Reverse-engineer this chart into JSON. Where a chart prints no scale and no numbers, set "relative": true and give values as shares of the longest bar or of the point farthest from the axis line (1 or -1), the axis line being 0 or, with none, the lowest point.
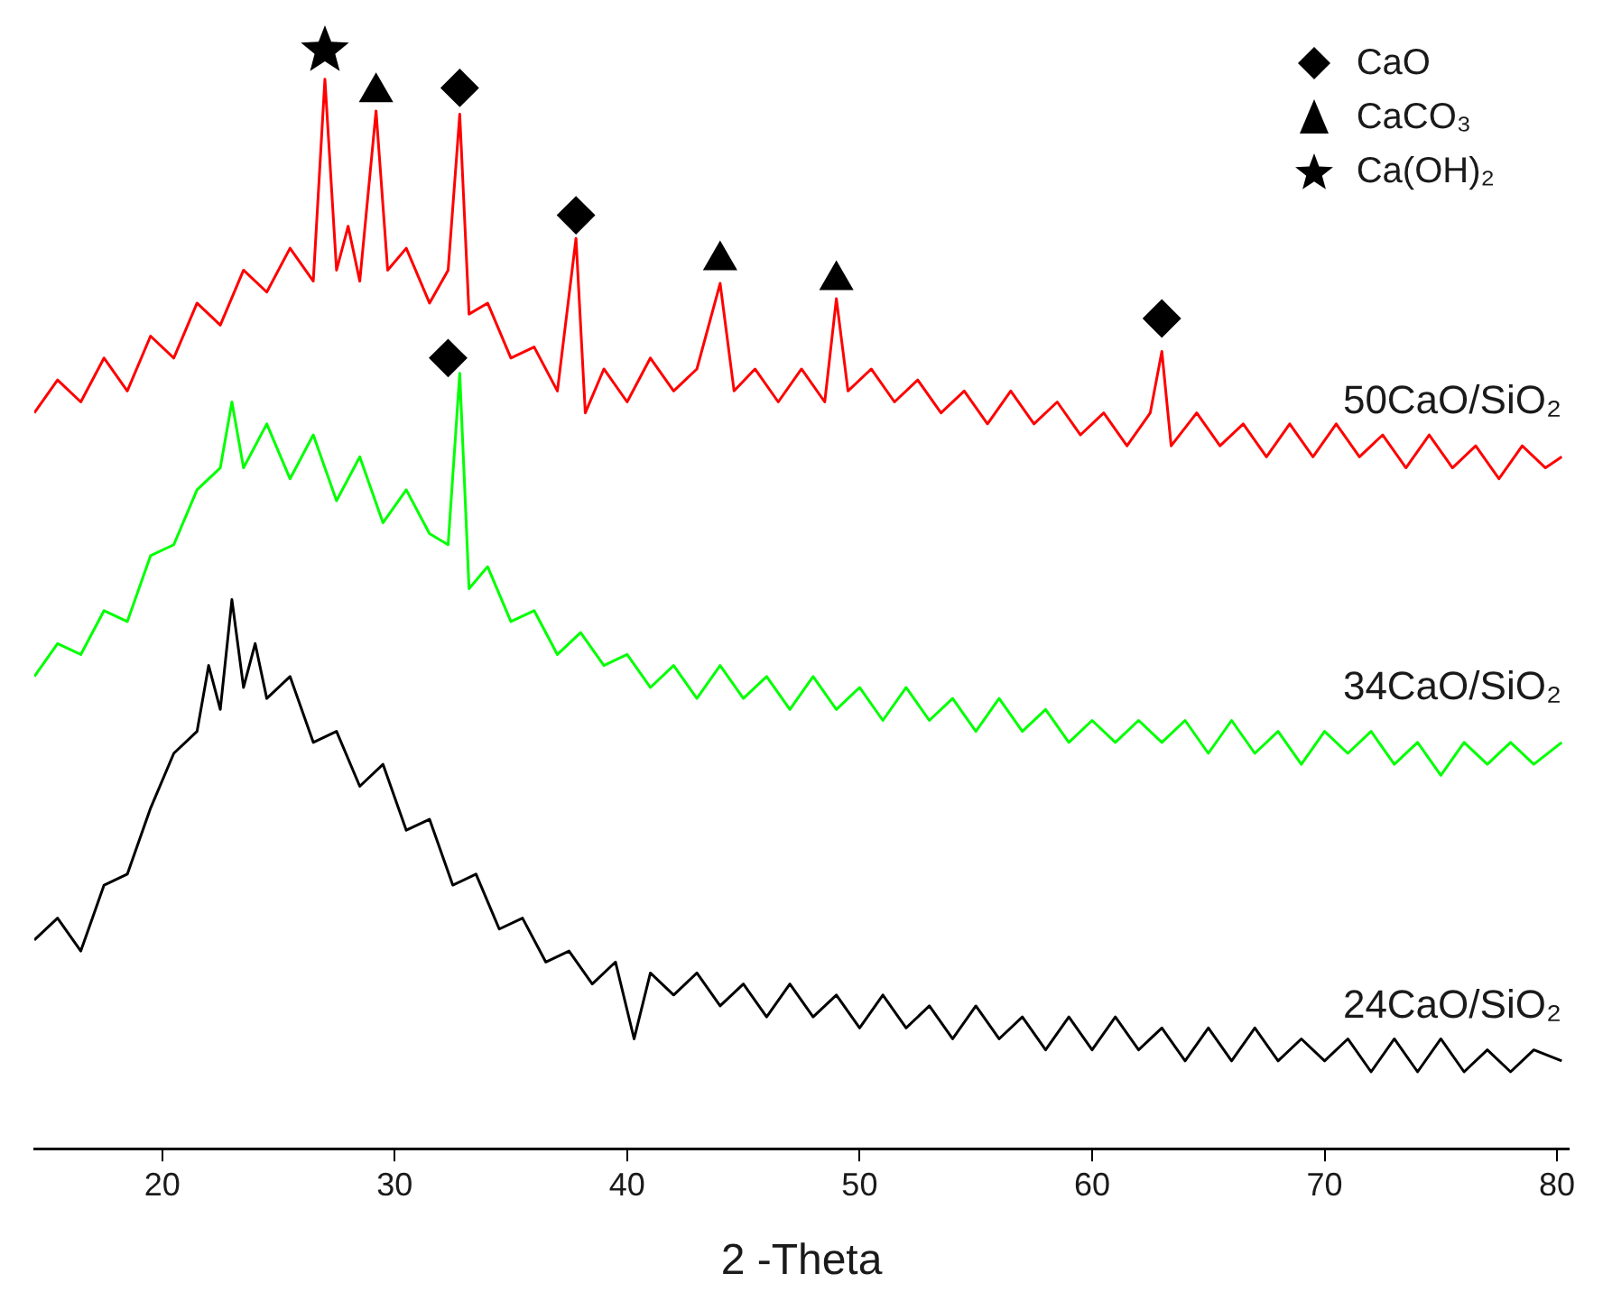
{
  "chart_data": {
    "type": "line",
    "relative": true,
    "xlabel": "2 -Theta",
    "xlim": [
      14.5,
      80.5
    ],
    "xticks": [
      20,
      30,
      40,
      50,
      60,
      70,
      80
    ],
    "grid": false,
    "legend": "top right",
    "marker": "none",
    "line_style": "solid",
    "series": [
      {
        "name": "50CaO/SiO₂",
        "color": "#ff0000",
        "x": [
          14.5,
          15.5,
          16.5,
          17.5,
          18.5,
          19.5,
          20.5,
          21.5,
          22.5,
          23.5,
          24.5,
          25.5,
          26.5,
          27,
          27.5,
          28,
          28.5,
          29.2,
          29.7,
          30.5,
          31.5,
          32.3,
          32.8,
          33.2,
          34,
          35,
          36,
          37,
          37.8,
          38.2,
          39,
          40,
          41,
          42,
          43,
          44,
          44.6,
          45.5,
          46.5,
          47.5,
          48.5,
          49,
          49.5,
          50.5,
          51.5,
          52.5,
          53.5,
          54.5,
          55.5,
          56.5,
          57.5,
          58.5,
          59.5,
          60.5,
          61.5,
          62.5,
          63,
          63.4,
          64.5,
          65.5,
          66.5,
          67.5,
          68.5,
          69.5,
          70.5,
          71.5,
          72.5,
          73.5,
          74.5,
          75.5,
          76.5,
          77.5,
          78.5,
          79.5,
          80.2
        ],
        "values": [
          0.67,
          0.7,
          0.68,
          0.72,
          0.69,
          0.74,
          0.72,
          0.77,
          0.75,
          0.8,
          0.78,
          0.82,
          0.79,
          0.974,
          0.8,
          0.84,
          0.79,
          0.945,
          0.8,
          0.82,
          0.77,
          0.8,
          0.942,
          0.76,
          0.77,
          0.72,
          0.73,
          0.69,
          0.829,
          0.67,
          0.71,
          0.68,
          0.72,
          0.69,
          0.71,
          0.788,
          0.69,
          0.71,
          0.68,
          0.71,
          0.68,
          0.774,
          0.69,
          0.71,
          0.68,
          0.7,
          0.67,
          0.69,
          0.66,
          0.69,
          0.66,
          0.68,
          0.65,
          0.67,
          0.64,
          0.67,
          0.726,
          0.64,
          0.67,
          0.64,
          0.66,
          0.63,
          0.66,
          0.63,
          0.66,
          0.63,
          0.65,
          0.62,
          0.65,
          0.62,
          0.64,
          0.61,
          0.64,
          0.62,
          0.63
        ]
      },
      {
        "name": "34CaO/SiO₂",
        "color": "#00ff00",
        "x": [
          14.5,
          15.5,
          16.5,
          17.5,
          18.5,
          19.5,
          20.5,
          21.5,
          22.5,
          23,
          23.5,
          24.5,
          25.5,
          26.5,
          27.5,
          28.5,
          29.5,
          30.5,
          31.5,
          32.3,
          32.8,
          33.2,
          34,
          35,
          36,
          37,
          38,
          39,
          40,
          41,
          42,
          43,
          44,
          45,
          46,
          47,
          48,
          49,
          50,
          51,
          52,
          53,
          54,
          55,
          56,
          57,
          58,
          59,
          60,
          61,
          62,
          63,
          64,
          65,
          66,
          67,
          68,
          69,
          70,
          71,
          72,
          73,
          74,
          75,
          76,
          77,
          78,
          79,
          80.2
        ],
        "values": [
          0.43,
          0.46,
          0.45,
          0.49,
          0.48,
          0.54,
          0.55,
          0.6,
          0.62,
          0.68,
          0.62,
          0.66,
          0.61,
          0.65,
          0.59,
          0.63,
          0.57,
          0.6,
          0.56,
          0.55,
          0.706,
          0.51,
          0.53,
          0.48,
          0.49,
          0.45,
          0.47,
          0.44,
          0.45,
          0.42,
          0.44,
          0.41,
          0.44,
          0.41,
          0.43,
          0.4,
          0.43,
          0.4,
          0.42,
          0.39,
          0.42,
          0.39,
          0.41,
          0.38,
          0.41,
          0.38,
          0.4,
          0.37,
          0.39,
          0.37,
          0.39,
          0.37,
          0.39,
          0.36,
          0.39,
          0.36,
          0.38,
          0.35,
          0.38,
          0.36,
          0.38,
          0.35,
          0.37,
          0.34,
          0.37,
          0.35,
          0.37,
          0.35,
          0.37
        ]
      },
      {
        "name": "24CaO/SiO₂",
        "color": "#000000",
        "x": [
          14.5,
          15.5,
          16.5,
          17.5,
          18.5,
          19.5,
          20.5,
          21.5,
          22,
          22.5,
          23,
          23.5,
          24,
          24.5,
          25.5,
          26.5,
          27.5,
          28.5,
          29.5,
          30.5,
          31.5,
          32.5,
          33.5,
          34.5,
          35.5,
          36.5,
          37.5,
          38.5,
          39.5,
          40.3,
          41,
          42,
          43,
          44,
          45,
          46,
          47,
          48,
          49,
          50,
          51,
          52,
          53,
          54,
          55,
          56,
          57,
          58,
          59,
          60,
          61,
          62,
          63,
          64,
          65,
          66,
          67,
          68,
          69,
          70,
          71,
          72,
          73,
          74,
          75,
          76,
          77,
          78,
          79,
          80.2
        ],
        "values": [
          0.19,
          0.21,
          0.18,
          0.24,
          0.25,
          0.31,
          0.36,
          0.38,
          0.44,
          0.4,
          0.5,
          0.42,
          0.46,
          0.41,
          0.43,
          0.37,
          0.38,
          0.33,
          0.35,
          0.29,
          0.3,
          0.24,
          0.25,
          0.2,
          0.21,
          0.17,
          0.18,
          0.15,
          0.17,
          0.1,
          0.16,
          0.14,
          0.16,
          0.13,
          0.15,
          0.12,
          0.15,
          0.12,
          0.14,
          0.11,
          0.14,
          0.11,
          0.13,
          0.1,
          0.13,
          0.1,
          0.12,
          0.09,
          0.12,
          0.09,
          0.12,
          0.09,
          0.11,
          0.08,
          0.11,
          0.08,
          0.11,
          0.08,
          0.1,
          0.08,
          0.1,
          0.07,
          0.1,
          0.07,
          0.1,
          0.07,
          0.09,
          0.07,
          0.09,
          0.08
        ]
      },
      {
        "type": "scatter",
        "name": "CaO",
        "color": "#000000",
        "marker": "diamond",
        "x": [
          32.8,
          37.8,
          63,
          32.3
        ],
        "values": [
          0.966,
          0.85,
          0.756,
          0.72
        ]
      },
      {
        "type": "scatter",
        "name": "CaCO₃",
        "color": "#000000",
        "marker": "triangle",
        "x": [
          29.2,
          44,
          49
        ],
        "values": [
          0.962,
          0.809,
          0.791
        ]
      },
      {
        "type": "scatter",
        "name": "Ca(OH)₂",
        "color": "#000000",
        "marker": "star",
        "x": [
          27
        ],
        "values": [
          1
        ]
      }
    ]
  }
}
